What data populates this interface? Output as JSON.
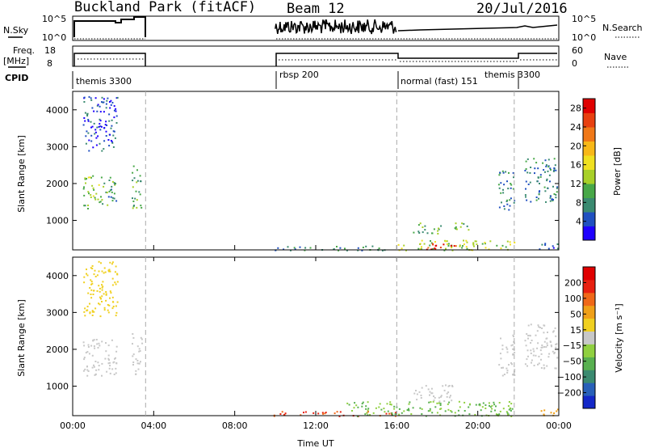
{
  "header": {
    "station": "Buckland Park (fitACF)",
    "beam": "Beam 12",
    "date": "20/Jul/2016"
  },
  "top_panels": {
    "nsky_label": "N.Sky",
    "nsky_ticks": [
      "10^5",
      "10^0"
    ],
    "nsearch_label": "N.Search",
    "nsearch_ticks": [
      "10^5",
      "10^0"
    ],
    "freq_label": "Freq.",
    "freq_unit": "[MHz]",
    "freq_ticks": [
      "18",
      "8"
    ],
    "nave_label": "Nave",
    "nave_ticks": [
      "60",
      "0"
    ],
    "cpid_label": "CPID",
    "cpid_segments": [
      {
        "label": "themis 3300",
        "start": 0.0
      },
      {
        "label": "rbsp 200",
        "start": 10.0
      },
      {
        "label": "normal (fast) 151",
        "start": 16.0
      },
      {
        "label": "themis 3300",
        "start": 22.0
      }
    ]
  },
  "chart_data": [
    {
      "type": "heatmap",
      "name": "power-panel",
      "xlabel": "",
      "ylabel": "Slant Range [km]",
      "xlim": [
        0,
        24
      ],
      "ylim": [
        200,
        4500
      ],
      "yticks": [
        "1000",
        "2000",
        "3000",
        "4000"
      ],
      "colorbar_label": "Power [dB]",
      "colorbar_ticks": [
        "4",
        "8",
        "12",
        "16",
        "20",
        "24",
        "28"
      ],
      "colorbar_colors": [
        "#1e00ff",
        "#2050c0",
        "#3a8a70",
        "#48a848",
        "#a8d028",
        "#f0e020",
        "#f8b818",
        "#f07818",
        "#e84010",
        "#e00000"
      ],
      "regions": [
        {
          "t0": 0.5,
          "t1": 1.3,
          "r0": 1300,
          "r1": 2250,
          "level": 12
        },
        {
          "t0": 1.3,
          "t1": 2.2,
          "r0": 1400,
          "r1": 2200,
          "level": 9
        },
        {
          "t0": 2.9,
          "t1": 3.4,
          "r0": 1300,
          "r1": 2500,
          "level": 10
        },
        {
          "t0": 0.5,
          "t1": 2.2,
          "r0": 2900,
          "r1": 4400,
          "level": 4
        },
        {
          "t0": 9.9,
          "t1": 16.0,
          "r0": 200,
          "r1": 330,
          "level": 8
        },
        {
          "t0": 16.0,
          "t1": 21.8,
          "r0": 200,
          "r1": 480,
          "level": 14
        },
        {
          "t0": 17.0,
          "t1": 19.0,
          "r0": 230,
          "r1": 400,
          "level": 26
        },
        {
          "t0": 16.7,
          "t1": 18.2,
          "r0": 650,
          "r1": 950,
          "level": 10
        },
        {
          "t0": 18.4,
          "t1": 19.6,
          "r0": 750,
          "r1": 950,
          "level": 12
        },
        {
          "t0": 21.0,
          "t1": 21.8,
          "r0": 1300,
          "r1": 2400,
          "level": 7
        },
        {
          "t0": 22.3,
          "t1": 23.9,
          "r0": 1500,
          "r1": 2700,
          "level": 7
        },
        {
          "t0": 23.0,
          "t1": 24.0,
          "r0": 200,
          "r1": 420,
          "level": 6
        }
      ]
    },
    {
      "type": "heatmap",
      "name": "velocity-panel",
      "xlabel": "Time UT",
      "ylabel": "Slant Range [km]",
      "xlim": [
        0,
        24
      ],
      "ylim": [
        200,
        4500
      ],
      "xticks": [
        "00:00",
        "04:00",
        "08:00",
        "12:00",
        "16:00",
        "20:00",
        "00:00"
      ],
      "yticks": [
        "1000",
        "2000",
        "3000",
        "4000"
      ],
      "colorbar_label": "Velocity [m s⁻¹]",
      "colorbar_ticks": [
        "200",
        "100",
        "50",
        "15",
        "−15",
        "−50",
        "−100",
        "−200"
      ],
      "colorbar_colors": [
        "#1428c8",
        "#2860b8",
        "#3a8a70",
        "#58b050",
        "#90d040",
        "#c8c8c8",
        "#f0d020",
        "#f0a018",
        "#f06818",
        "#e82010",
        "#e00000"
      ],
      "regions": [
        {
          "t0": 0.5,
          "t1": 2.2,
          "r0": 1300,
          "r1": 2300,
          "level": 0
        },
        {
          "t0": 2.9,
          "t1": 3.4,
          "r0": 1300,
          "r1": 2500,
          "level": 0
        },
        {
          "t0": 0.5,
          "t1": 2.2,
          "r0": 2900,
          "r1": 4400,
          "level": -30
        },
        {
          "t0": 9.9,
          "t1": 16.0,
          "r0": 200,
          "r1": 330,
          "level": -150
        },
        {
          "t0": 13.5,
          "t1": 21.8,
          "r0": 200,
          "r1": 600,
          "level": 20
        },
        {
          "t0": 16.8,
          "t1": 18.8,
          "r0": 600,
          "r1": 1050,
          "level": 0
        },
        {
          "t0": 21.0,
          "t1": 21.8,
          "r0": 1300,
          "r1": 2400,
          "level": 0
        },
        {
          "t0": 22.3,
          "t1": 23.9,
          "r0": 1500,
          "r1": 2700,
          "level": 0
        },
        {
          "t0": 23.0,
          "t1": 24.0,
          "r0": 200,
          "r1": 420,
          "level": -40
        }
      ]
    }
  ]
}
